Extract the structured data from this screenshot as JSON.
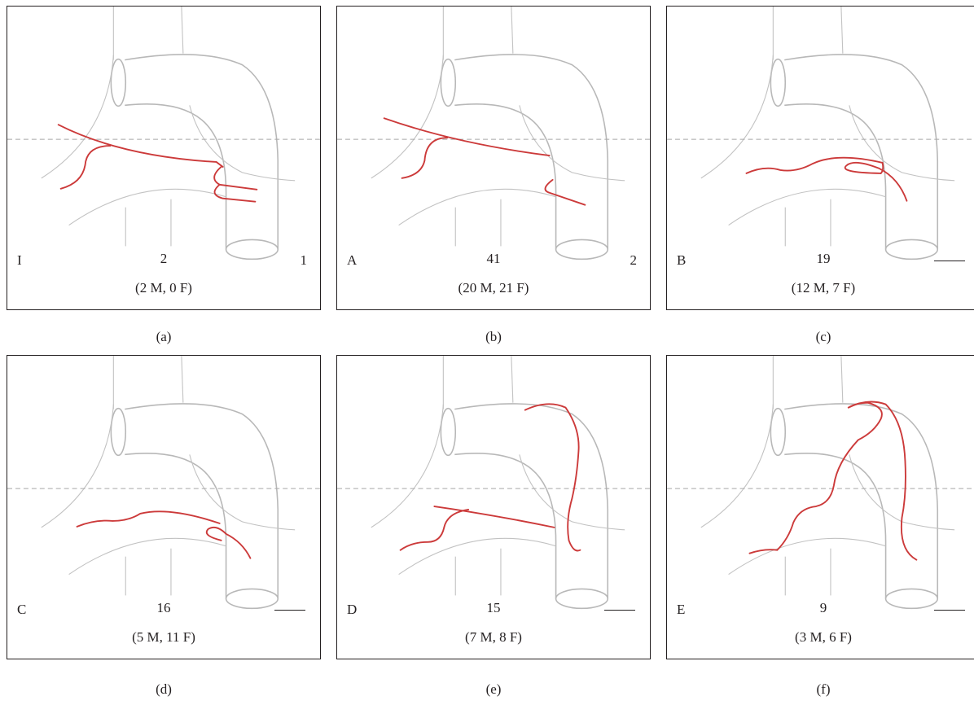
{
  "panels": [
    {
      "caption": "(a)",
      "type": "I",
      "count": "2",
      "breakdown": "(2 M, 0 F)",
      "corner_number": "1",
      "scale_bar": false
    },
    {
      "caption": "(b)",
      "type": "A",
      "count": "41",
      "breakdown": "(20 M, 21 F)",
      "corner_number": "2",
      "scale_bar": false
    },
    {
      "caption": "(c)",
      "type": "B",
      "count": "19",
      "breakdown": "(12 M, 7 F)",
      "corner_number": "",
      "scale_bar": true
    },
    {
      "caption": "(d)",
      "type": "C",
      "count": "16",
      "breakdown": "(5 M, 11 F)",
      "corner_number": "",
      "scale_bar": true
    },
    {
      "caption": "(e)",
      "type": "D",
      "count": "15",
      "breakdown": "(7 M, 8 F)",
      "corner_number": "",
      "scale_bar": true
    },
    {
      "caption": "(f)",
      "type": "E",
      "count": "9",
      "breakdown": "(3 M, 6 F)",
      "corner_number": "",
      "scale_bar": true
    }
  ],
  "colors": {
    "anatomy": "#b8b8b8",
    "vessel": "#cc3a3a",
    "frame": "#231f20"
  }
}
